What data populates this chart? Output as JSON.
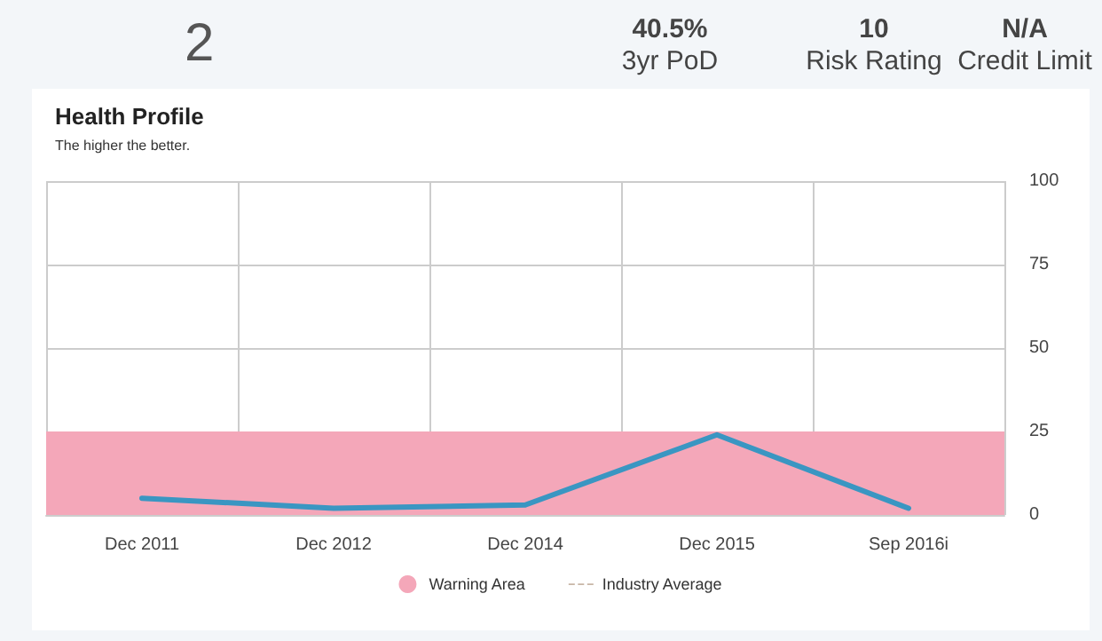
{
  "chart_data": [
    {
      "type": "other",
      "annotations": [
        "2",
        "40.5%",
        "3yr PoD",
        "10",
        "Risk Rating",
        "N/A",
        "Credit Limit"
      ]
    },
    {
      "type": "line",
      "title": "Health Profile",
      "subtitle": "The higher the better.",
      "categories": [
        "Dec 2011",
        "Dec 2012",
        "Dec 2014",
        "Dec 2015",
        "Sep 2016i"
      ],
      "series": [
        {
          "color": "#3a96c2",
          "values": [
            5,
            2,
            3,
            24,
            2
          ]
        },
        {
          "name": "Industry Average",
          "color": "#c8b6a6",
          "line_style": "dashed",
          "values": [
            null,
            null,
            null,
            null,
            null
          ]
        }
      ],
      "bands": [
        {
          "axis": "y",
          "from": 0,
          "to": 25,
          "label": "Warning Area",
          "color": "#f4a7b9"
        }
      ],
      "ylim": [
        0,
        100
      ],
      "yticks": [
        0,
        25,
        50,
        75,
        100
      ],
      "grid": true,
      "legend": "bottom",
      "marker": "none"
    }
  ]
}
